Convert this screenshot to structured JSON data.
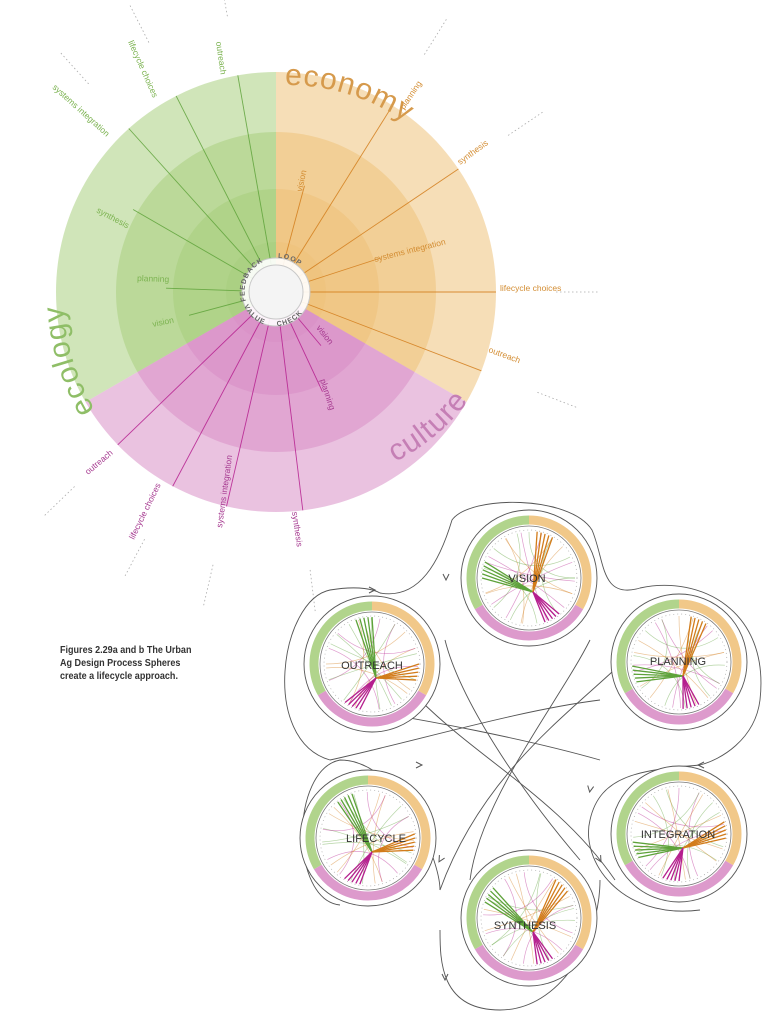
{
  "colors": {
    "green": "#a9cf7f",
    "orange": "#efc27c",
    "pink": "#d98fc6",
    "green_text": "#7cb351",
    "orange_text": "#d38d33",
    "pink_text": "#a5388f",
    "green_line": "#5ea23a",
    "orange_line": "#d27c1b",
    "pink_line": "#b51f8e"
  },
  "spheres_diagram": {
    "sectors": [
      {
        "id": "economy",
        "label": "economy",
        "color": "orange"
      },
      {
        "id": "culture",
        "label": "culture",
        "color": "pink"
      },
      {
        "id": "ecology",
        "label": "ecology",
        "color": "green"
      }
    ],
    "hub_arcs": [
      "FEEDBACK",
      "LOOP",
      "VALUE",
      "CHECK"
    ],
    "ring_labels": {
      "economy": [
        "vision",
        "systems integration"
      ],
      "culture": [
        "vision",
        "planning"
      ],
      "ecology": [
        "synthesis",
        "planning",
        "vision"
      ]
    },
    "spokes": {
      "ecology": [
        "systems integration",
        "lifecycle choices",
        "outreach"
      ],
      "economy": [
        "planning",
        "synthesis",
        "lifecycle choices",
        "outreach"
      ],
      "culture": [
        "outreach",
        "lifecycle choices",
        "systems integration",
        "synthesis"
      ]
    }
  },
  "lifecycle_diagram": {
    "stages": [
      "VISION",
      "PLANNING",
      "INTEGRATION",
      "SYNTHESIS",
      "LIFECYCLE",
      "OUTREACH"
    ]
  },
  "caption": {
    "line1": "Figures 2.29a and b   The Urban",
    "line2": "Ag Design Process Spheres",
    "line3": "create a lifecycle approach."
  }
}
